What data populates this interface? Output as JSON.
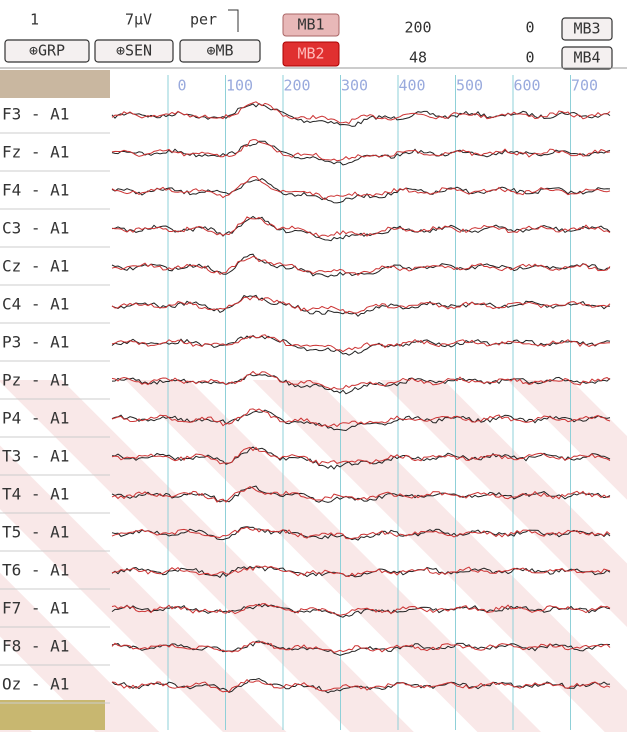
{
  "header": {
    "page": "1",
    "sensitivity": "7µV",
    "per": "per",
    "buttons": [
      "⊕GRP",
      "⊕SEN",
      "⊕MB"
    ],
    "mb_top": "MB1",
    "mb_bottom": "MB2",
    "row1": [
      "200",
      "0",
      "MB3"
    ],
    "row2": [
      "48",
      "0",
      "MB4"
    ]
  },
  "time_axis": [
    "0",
    "100",
    "200",
    "300",
    "400",
    "500",
    "600",
    "700"
  ],
  "channels": [
    "F3 - A1",
    "Fz - A1",
    "F4 - A1",
    "C3 - A1",
    "Cz - A1",
    "C4 - A1",
    "P3 - A1",
    "Pz - A1",
    "P4 - A1",
    "T3 - A1",
    "T4 - A1",
    "T5 - A1",
    "T6 - A1",
    "F7 - A1",
    "F8 - A1",
    "Oz - A1"
  ]
}
